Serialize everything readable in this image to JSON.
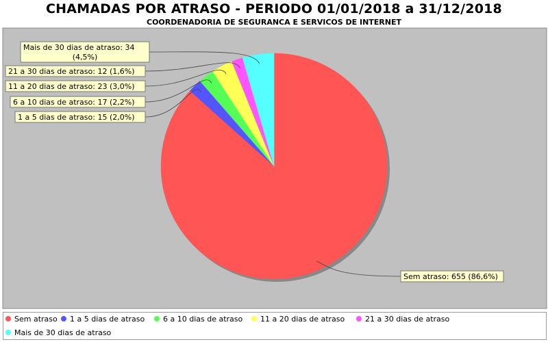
{
  "chart_data": {
    "type": "pie",
    "title": "CHAMADAS POR ATRASO - PERIODO 01/01/2018 a 31/12/2018",
    "subtitle": "COORDENADORIA DE SEGURANCA E SERVICOS DE INTERNET",
    "legend_position": "bottom",
    "slices": [
      {
        "name": "Sem atraso",
        "value": 655,
        "label": "Sem atraso: 655 (86,6%)",
        "color": "#ff5555"
      },
      {
        "name": "1 a 5 dias de atraso",
        "value": 15,
        "label": "1 a 5 dias de atraso: 15 (2,0%)",
        "color": "#5555ff"
      },
      {
        "name": "6 a 10 dias de atraso",
        "value": 17,
        "label": "6 a 10 dias de atraso: 17 (2,2%)",
        "color": "#55ff55"
      },
      {
        "name": "11 a 20 dias de atraso",
        "value": 23,
        "label": "11 a 20 dias de atraso: 23 (3,0%)",
        "color": "#ffff55"
      },
      {
        "name": "21 a 30 dias de atraso",
        "value": 12,
        "label": "21 a 30 dias de atraso: 12 (1,6%)",
        "color": "#ff55ff"
      },
      {
        "name": "Mais de 30 dias de atraso",
        "value": 34,
        "label": "Mais de 30 dias de atraso: 34 (4,5%)",
        "color": "#55ffff"
      }
    ]
  },
  "colors": {
    "plot_background": "#c0c0c0",
    "label_background": "#ffffcc"
  }
}
